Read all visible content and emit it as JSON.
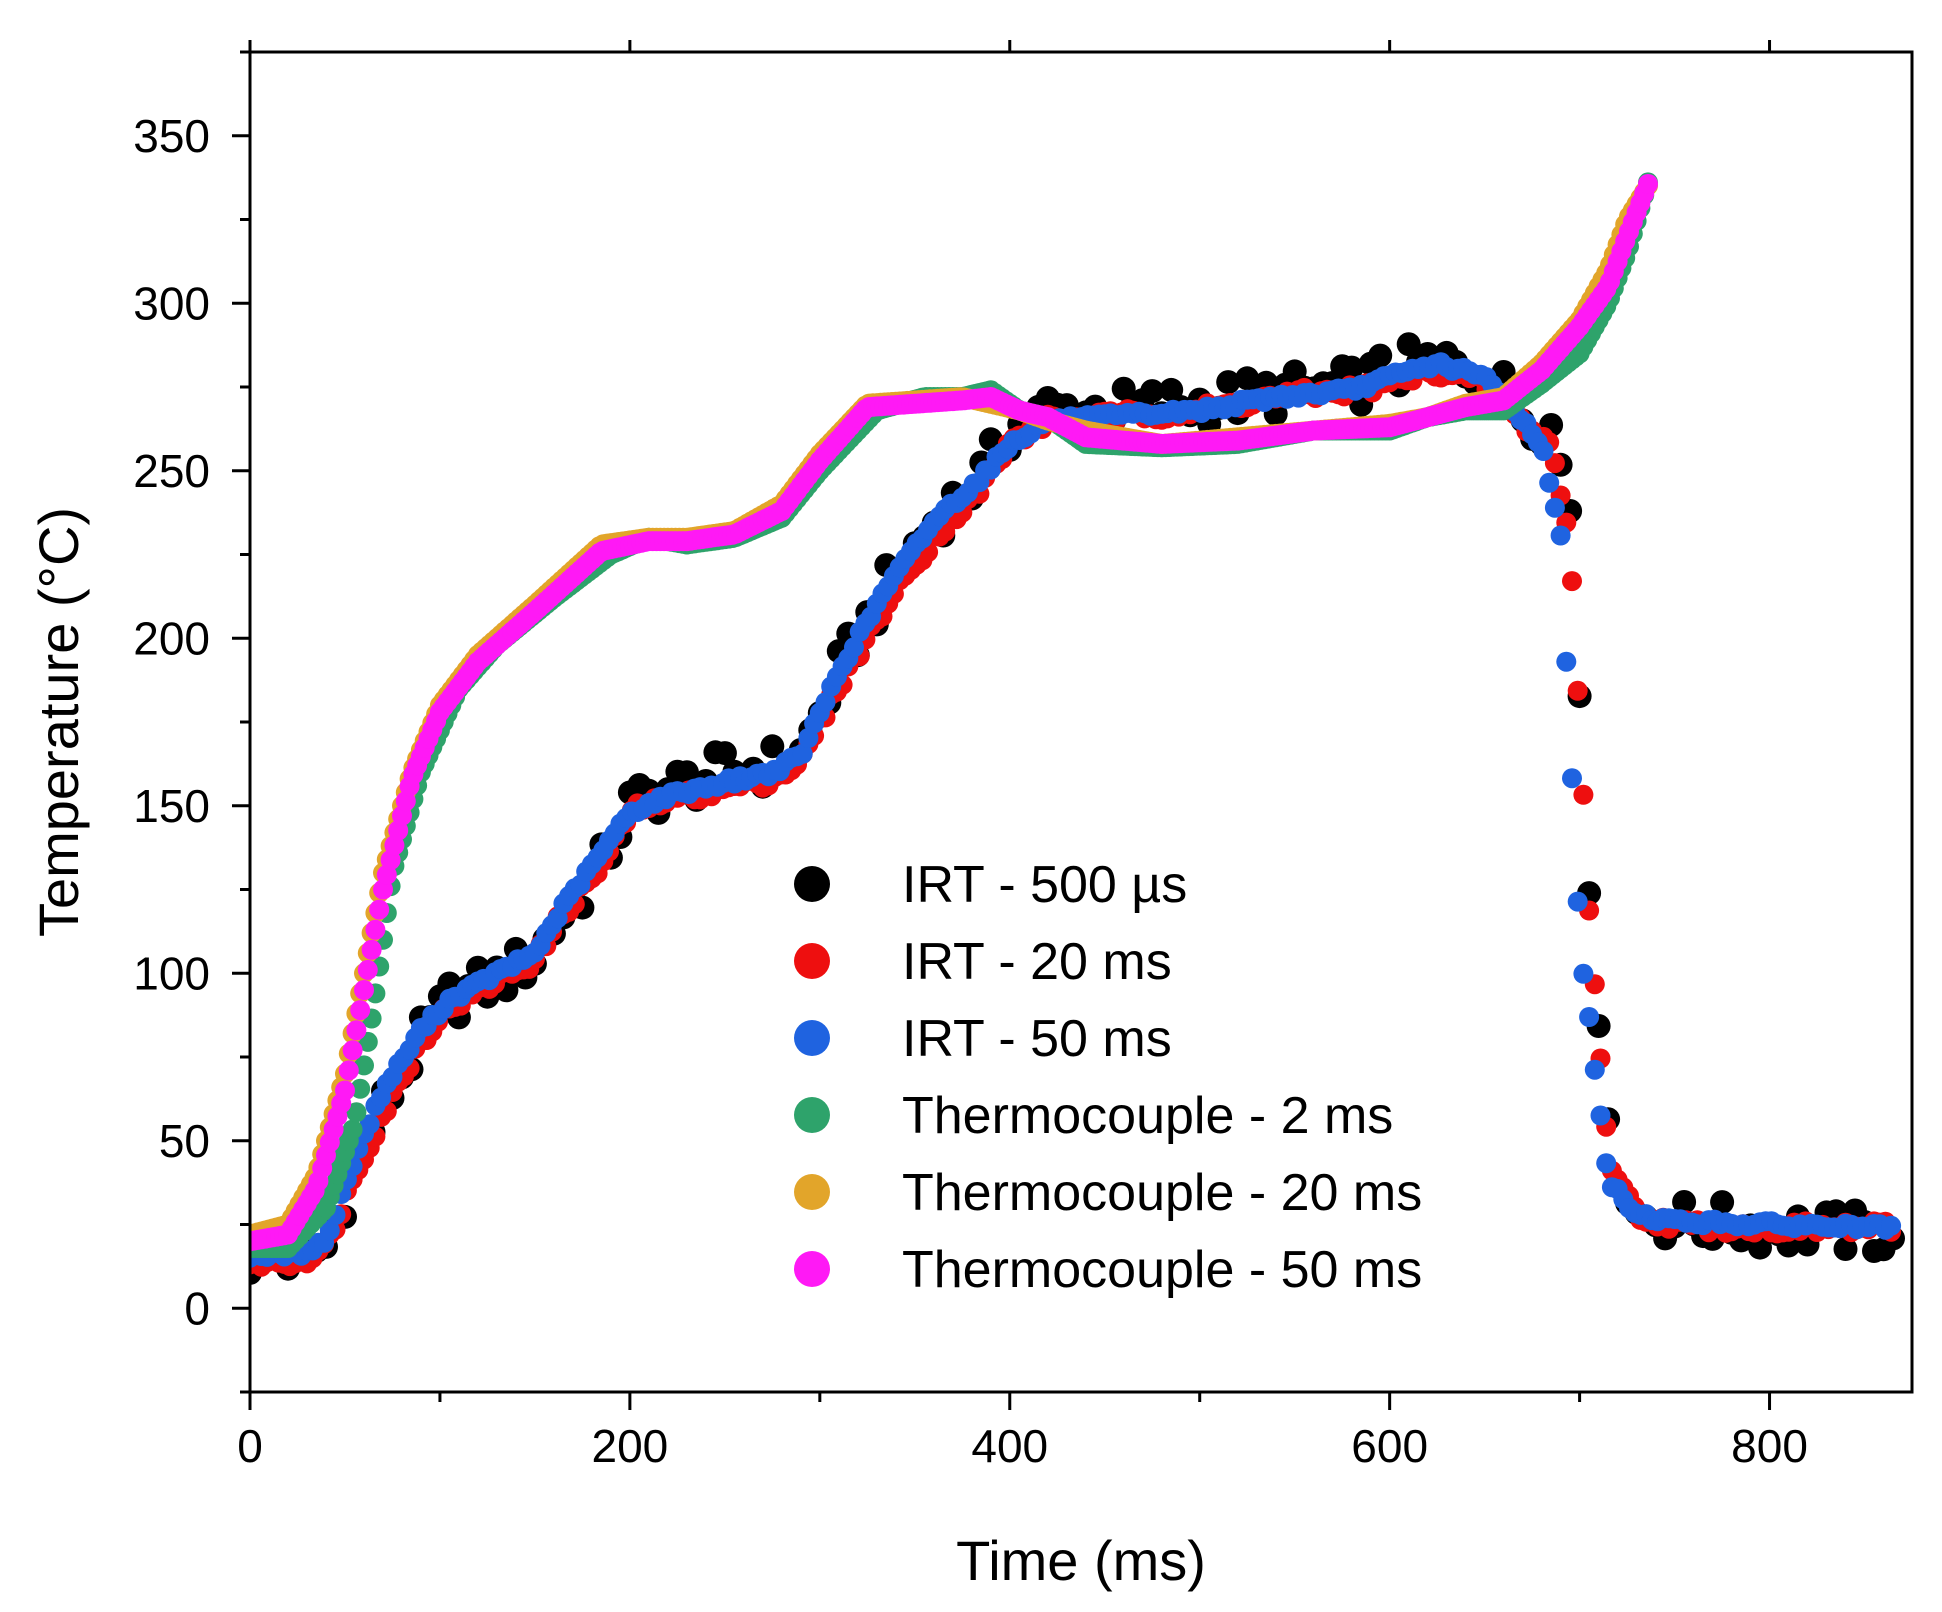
{
  "chart_data": {
    "type": "scatter",
    "title": "",
    "xlabel": "Time (ms)",
    "ylabel": "Temperature (°C)",
    "xlim": [
      0,
      875
    ],
    "ylim": [
      -25,
      375
    ],
    "xticks": [
      0,
      200,
      400,
      600,
      800
    ],
    "yticks": [
      0,
      50,
      100,
      150,
      200,
      250,
      300,
      350
    ],
    "legend_position": "center",
    "series": [
      {
        "name": "IRT - 500 µs",
        "color": "#000000",
        "noise": 7,
        "step": 5,
        "x": [
          0,
          25,
          40,
          55,
          70,
          90,
          105,
          130,
          150,
          165,
          185,
          200,
          220,
          250,
          275,
          290,
          310,
          335,
          360,
          385,
          400,
          420,
          450,
          500,
          540,
          580,
          600,
          625,
          650,
          670,
          685,
          695,
          705,
          715,
          730,
          750,
          800,
          865
        ],
        "y": [
          15,
          15,
          18,
          42,
          60,
          80,
          92,
          98,
          105,
          118,
          132,
          150,
          155,
          160,
          162,
          165,
          190,
          215,
          235,
          248,
          262,
          268,
          268,
          270,
          273,
          275,
          280,
          282,
          280,
          268,
          263,
          240,
          130,
          50,
          28,
          26,
          24,
          22
        ]
      },
      {
        "name": "IRT - 20 ms",
        "color": "#ee0f0f",
        "noise": 2,
        "step": 3,
        "x": [
          0,
          25,
          40,
          55,
          70,
          90,
          105,
          130,
          150,
          165,
          185,
          200,
          220,
          250,
          275,
          290,
          310,
          335,
          360,
          385,
          400,
          420,
          450,
          500,
          540,
          580,
          600,
          625,
          650,
          670,
          685,
          695,
          705,
          715,
          730,
          750,
          800,
          865
        ],
        "y": [
          14,
          14,
          18,
          40,
          58,
          80,
          90,
          98,
          104,
          118,
          132,
          148,
          152,
          155,
          158,
          163,
          186,
          210,
          230,
          245,
          258,
          265,
          266,
          268,
          272,
          274,
          276,
          280,
          276,
          264,
          258,
          228,
          120,
          45,
          28,
          25,
          24,
          24
        ]
      },
      {
        "name": "IRT - 50 ms",
        "color": "#1f63e0",
        "noise": 1,
        "step": 3,
        "x": [
          0,
          25,
          40,
          55,
          70,
          90,
          105,
          130,
          150,
          165,
          185,
          200,
          220,
          250,
          275,
          290,
          310,
          335,
          360,
          385,
          400,
          420,
          450,
          500,
          540,
          580,
          600,
          625,
          650,
          670,
          680,
          690,
          700,
          715,
          730,
          750,
          800,
          865
        ],
        "y": [
          16,
          16,
          20,
          45,
          65,
          83,
          92,
          100,
          106,
          120,
          136,
          148,
          153,
          157,
          160,
          165,
          190,
          215,
          235,
          248,
          258,
          265,
          266,
          268,
          272,
          274,
          278,
          282,
          278,
          265,
          258,
          230,
          110,
          38,
          28,
          26,
          25,
          24
        ]
      },
      {
        "name": "Thermocouple - 2 ms",
        "color": "#2ea36b",
        "noise": 0,
        "step": 2,
        "x": [
          0,
          20,
          40,
          55,
          65,
          75,
          90,
          110,
          130,
          160,
          190,
          210,
          230,
          255,
          280,
          300,
          330,
          355,
          375,
          390,
          405,
          420,
          440,
          480,
          520,
          560,
          600,
          620,
          640,
          660,
          680,
          700,
          715,
          725,
          737
        ],
        "y": [
          18,
          18,
          30,
          55,
          90,
          130,
          160,
          185,
          198,
          212,
          225,
          230,
          228,
          230,
          236,
          250,
          268,
          272,
          272,
          274,
          268,
          266,
          258,
          257,
          258,
          262,
          262,
          266,
          268,
          268,
          276,
          285,
          300,
          315,
          338
        ]
      },
      {
        "name": "Thermocouple - 20 ms",
        "color": "#e2a52a",
        "noise": 0,
        "step": 2,
        "x": [
          0,
          20,
          35,
          50,
          60,
          70,
          85,
          100,
          120,
          150,
          185,
          210,
          230,
          255,
          280,
          300,
          325,
          350,
          375,
          390,
          405,
          420,
          440,
          480,
          520,
          560,
          600,
          620,
          640,
          660,
          680,
          700,
          715,
          725,
          737
        ],
        "y": [
          22,
          25,
          40,
          70,
          100,
          130,
          160,
          180,
          195,
          210,
          228,
          230,
          230,
          232,
          240,
          255,
          270,
          271,
          272,
          270,
          268,
          265,
          262,
          258,
          260,
          262,
          264,
          266,
          270,
          272,
          282,
          295,
          310,
          325,
          336
        ]
      },
      {
        "name": "Thermocouple - 50 ms",
        "color": "#ff19f5",
        "noise": 0,
        "step": 2,
        "x": [
          0,
          20,
          35,
          50,
          60,
          70,
          85,
          100,
          120,
          150,
          185,
          210,
          230,
          255,
          280,
          300,
          325,
          350,
          375,
          390,
          405,
          420,
          440,
          480,
          520,
          560,
          600,
          620,
          640,
          660,
          680,
          700,
          715,
          725,
          737
        ],
        "y": [
          20,
          22,
          36,
          65,
          95,
          125,
          158,
          178,
          193,
          208,
          226,
          229,
          229,
          231,
          238,
          253,
          269,
          270,
          271,
          272,
          268,
          266,
          260,
          258,
          259,
          262,
          263,
          266,
          269,
          271,
          280,
          293,
          305,
          320,
          337
        ]
      }
    ]
  }
}
